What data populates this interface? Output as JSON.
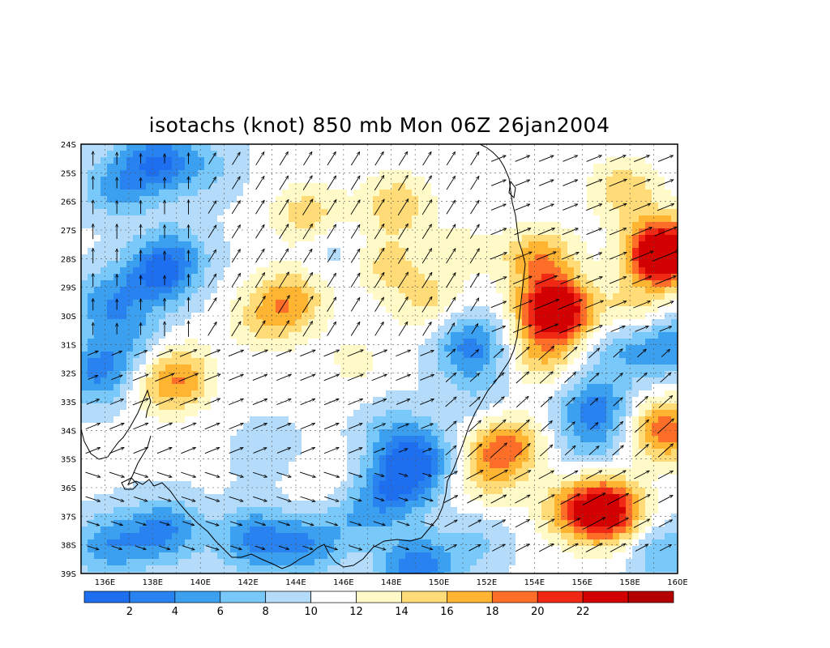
{
  "title": "isotachs (knot) 850 mb Mon 06Z 26jan2004",
  "lat_labels": [
    "24S",
    "25S",
    "26S",
    "27S",
    "28S",
    "29S",
    "30S",
    "31S",
    "32S",
    "33S",
    "34S",
    "35S",
    "36S",
    "37S",
    "38S",
    "39S"
  ],
  "lon_labels": [
    "136E",
    "138E",
    "140E",
    "142E",
    "144E",
    "146E",
    "148E",
    "150E",
    "152E",
    "154E",
    "156E",
    "158E",
    "160E"
  ],
  "colorbar": {
    "labels": [
      "2",
      "4",
      "6",
      "8",
      "10",
      "12",
      "14",
      "16",
      "18",
      "20",
      "22"
    ],
    "colors": [
      "#1e6ef0",
      "#2882f0",
      "#3ca0f0",
      "#78c8fa",
      "#b4dcfa",
      "#ffffff",
      "#fffac8",
      "#ffdc78",
      "#ffb432",
      "#ff6e28",
      "#f02814",
      "#d20000",
      "#b40000"
    ]
  },
  "map_data": {
    "lon_range": [
      135,
      160
    ],
    "lat_range": [
      -39,
      -24
    ],
    "speed_levels": [
      2,
      4,
      6,
      8,
      10,
      12,
      14,
      16,
      18,
      20,
      22
    ],
    "blobs": [
      {
        "lon": 136.5,
        "lat": -25.5,
        "v": -5
      },
      {
        "lon": 138.2,
        "lat": -24.6,
        "v": -8
      },
      {
        "lon": 140.2,
        "lat": -24.8,
        "v": -3
      },
      {
        "lon": 136.0,
        "lat": -29.5,
        "v": -5
      },
      {
        "lon": 138.2,
        "lat": -28.6,
        "v": -8
      },
      {
        "lon": 139.0,
        "lat": -27.8,
        "v": -4
      },
      {
        "lon": 135.7,
        "lat": -32.0,
        "v": -7
      },
      {
        "lon": 137.0,
        "lat": -30.7,
        "v": -4
      },
      {
        "lon": 141.0,
        "lat": -32.0,
        "v": -1
      },
      {
        "lon": 143.0,
        "lat": -34.8,
        "v": -2
      },
      {
        "lon": 144.5,
        "lat": -26.5,
        "v": 5
      },
      {
        "lon": 143.8,
        "lat": -29.4,
        "v": 6
      },
      {
        "lon": 142.7,
        "lat": -30.2,
        "v": 4
      },
      {
        "lon": 147.8,
        "lat": -28.2,
        "v": 4
      },
      {
        "lon": 149.6,
        "lat": -29.5,
        "v": 4
      },
      {
        "lon": 148.2,
        "lat": -26.1,
        "v": 5
      },
      {
        "lon": 151.0,
        "lat": -27.7,
        "v": 2
      },
      {
        "lon": 139.3,
        "lat": -32.1,
        "v": 6
      },
      {
        "lon": 138.3,
        "lat": -32.5,
        "v": 3
      },
      {
        "lon": 146.5,
        "lat": -31.6,
        "v": 2
      },
      {
        "lon": 151.4,
        "lat": -31.3,
        "v": -5
      },
      {
        "lon": 151.8,
        "lat": -33.0,
        "v": -2
      },
      {
        "lon": 149.1,
        "lat": -35.0,
        "v": -8
      },
      {
        "lon": 148.2,
        "lat": -36.0,
        "v": -7
      },
      {
        "lon": 148.0,
        "lat": -34.0,
        "v": -3
      },
      {
        "lon": 154.9,
        "lat": -29.8,
        "v": 16
      },
      {
        "lon": 154.2,
        "lat": -28.0,
        "v": 7
      },
      {
        "lon": 154.3,
        "lat": -31.4,
        "v": 5
      },
      {
        "lon": 152.8,
        "lat": -34.5,
        "v": 8
      },
      {
        "lon": 152.0,
        "lat": -35.6,
        "v": 4
      },
      {
        "lon": 159.4,
        "lat": -27.8,
        "v": 18
      },
      {
        "lon": 157.8,
        "lat": -25.6,
        "v": 5
      },
      {
        "lon": 158.2,
        "lat": -29.8,
        "v": 4
      },
      {
        "lon": 157.0,
        "lat": -36.8,
        "v": 14
      },
      {
        "lon": 155.5,
        "lat": -36.8,
        "v": 5
      },
      {
        "lon": 159.5,
        "lat": -34.0,
        "v": 9
      },
      {
        "lon": 156.5,
        "lat": -33.2,
        "v": -7
      },
      {
        "lon": 157.5,
        "lat": -31.2,
        "v": -4
      },
      {
        "lon": 159.6,
        "lat": -31.0,
        "v": -6
      },
      {
        "lon": 159.4,
        "lat": -38.3,
        "v": -4
      },
      {
        "lon": 156.4,
        "lat": -34.5,
        "v": -3
      },
      {
        "lon": 142.2,
        "lat": -37.8,
        "v": -7
      },
      {
        "lon": 144.5,
        "lat": -38.0,
        "v": -6
      },
      {
        "lon": 138.5,
        "lat": -37.5,
        "v": -7
      },
      {
        "lon": 136.2,
        "lat": -38.0,
        "v": -6
      },
      {
        "lon": 146.7,
        "lat": -37.0,
        "v": -4
      },
      {
        "lon": 149.0,
        "lat": -38.8,
        "v": -8
      },
      {
        "lon": 151.4,
        "lat": -38.0,
        "v": -3
      },
      {
        "lon": 145.0,
        "lat": -35.8,
        "v": 2
      },
      {
        "lon": 151.2,
        "lat": -30.7,
        "v": -3
      },
      {
        "lon": 145.5,
        "lat": -27.6,
        "v": -2
      }
    ]
  }
}
